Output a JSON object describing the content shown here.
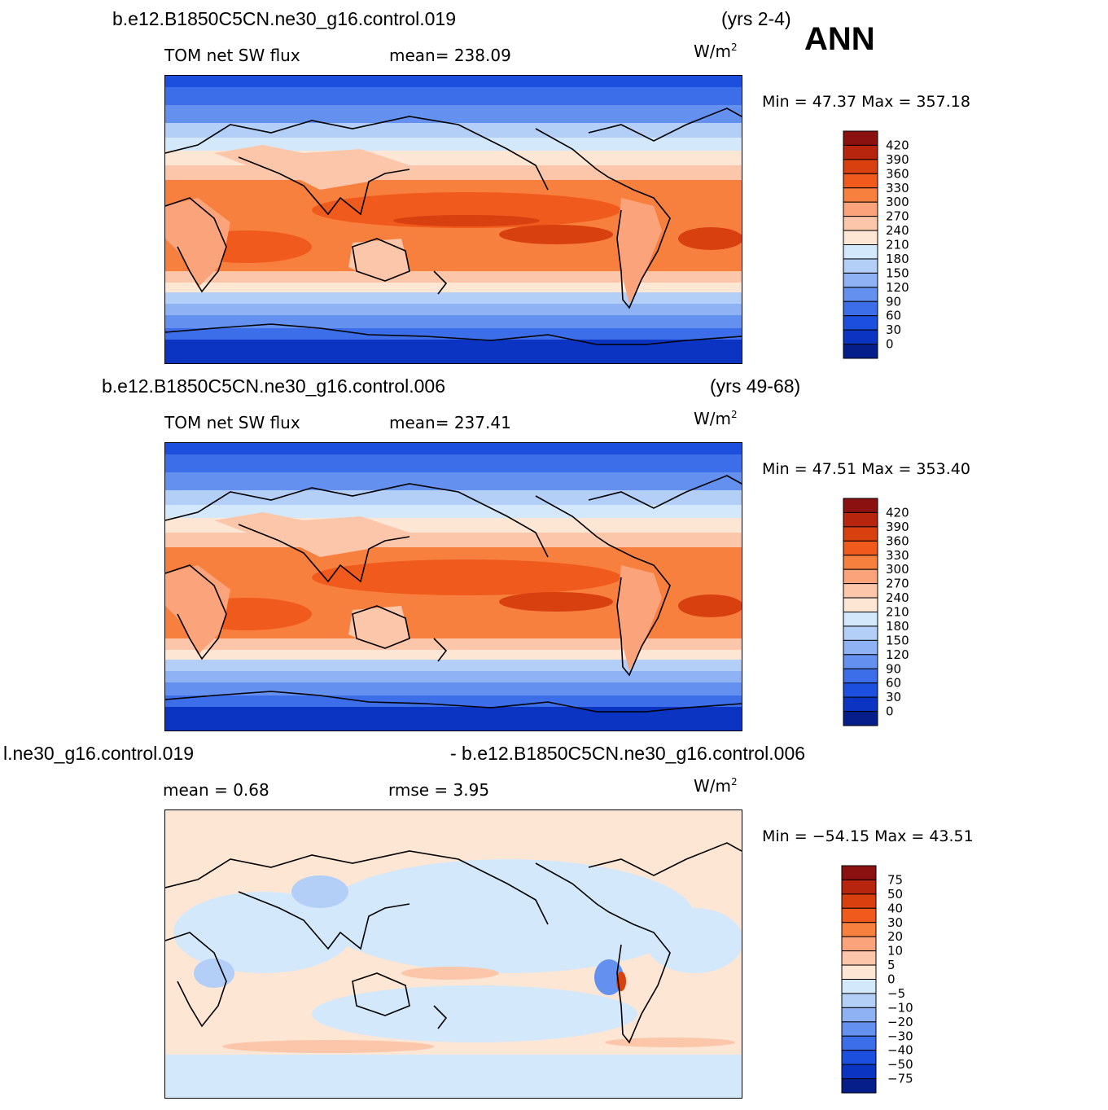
{
  "header": {
    "season": "ANN"
  },
  "panels": [
    {
      "case": "b.e12.B1850C5CN.ne30_g16.control.019",
      "years": "(yrs 2-4)",
      "variable": "TOM net SW flux",
      "stat1": "mean= 238.09",
      "stat2": "",
      "units": "W/m",
      "units_exp": "2",
      "minmax": "Min =   47.37  Max  =  357.18",
      "colorbar": {
        "labels": [
          "420",
          "390",
          "360",
          "330",
          "300",
          "270",
          "240",
          "210",
          "180",
          "150",
          "120",
          "90",
          "60",
          "30",
          "0"
        ],
        "colors": [
          "#8b1010",
          "#b8250e",
          "#d8400f",
          "#f05a1c",
          "#f8803f",
          "#fba37a",
          "#fcc6aa",
          "#fde6d4",
          "#d4e8fb",
          "#b3cff8",
          "#8eb2f4",
          "#6490f0",
          "#3c6ee9",
          "#1d4fdf",
          "#0b34c2",
          "#061e8a"
        ]
      }
    },
    {
      "case": "b.e12.B1850C5CN.ne30_g16.control.006",
      "years": "(yrs 49-68)",
      "variable": "TOM net SW flux",
      "stat1": "mean= 237.41",
      "stat2": "",
      "units": "W/m",
      "units_exp": "2",
      "minmax": "Min =   47.51  Max  =  353.40",
      "colorbar": {
        "labels": [
          "420",
          "390",
          "360",
          "330",
          "300",
          "270",
          "240",
          "210",
          "180",
          "150",
          "120",
          "90",
          "60",
          "30",
          "0"
        ],
        "colors": [
          "#8b1010",
          "#b8250e",
          "#d8400f",
          "#f05a1c",
          "#f8803f",
          "#fba37a",
          "#fcc6aa",
          "#fde6d4",
          "#d4e8fb",
          "#b3cff8",
          "#8eb2f4",
          "#6490f0",
          "#3c6ee9",
          "#1d4fdf",
          "#0b34c2",
          "#061e8a"
        ]
      }
    },
    {
      "case": "l.ne30_g16.control.019",
      "years": "- b.e12.B1850C5CN.ne30_g16.control.006",
      "variable": "mean =      0.68",
      "stat1": "rmse  =     3.95",
      "stat2": "",
      "units": "W/m",
      "units_exp": "2",
      "minmax": "Min  =  −54.15  Max  =    43.51",
      "colorbar": {
        "labels": [
          "75",
          "50",
          "40",
          "30",
          "20",
          "10",
          "5",
          "0",
          "−5",
          "−10",
          "−20",
          "−30",
          "−40",
          "−50",
          "−75"
        ],
        "colors": [
          "#8b1010",
          "#b8250e",
          "#d8400f",
          "#f05a1c",
          "#f8803f",
          "#fba37a",
          "#fcc6aa",
          "#fde6d4",
          "#d4e8fb",
          "#b3cff8",
          "#8eb2f4",
          "#6490f0",
          "#3c6ee9",
          "#1d4fdf",
          "#0b34c2",
          "#061e8a"
        ]
      }
    }
  ]
}
